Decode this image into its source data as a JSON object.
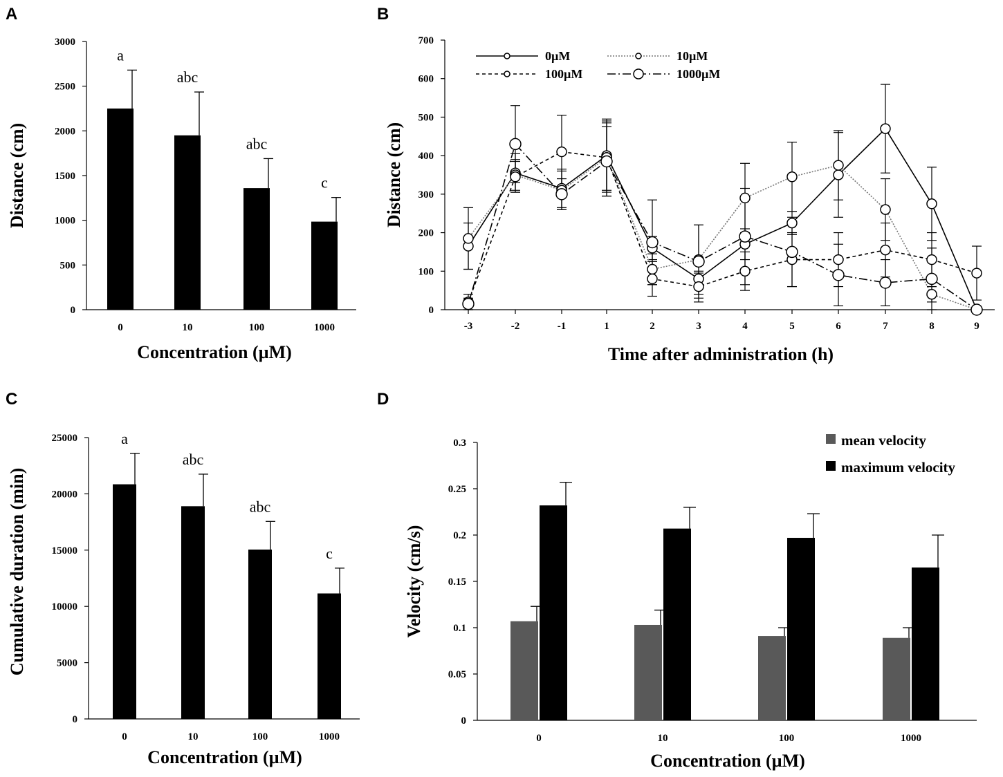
{
  "panels": {
    "A": "A",
    "B": "B",
    "C": "C",
    "D": "D"
  },
  "chart_data": [
    {
      "panel": "A",
      "type": "bar",
      "categories": [
        "0",
        "10",
        "100",
        "1000"
      ],
      "values": [
        2250,
        1950,
        1360,
        985
      ],
      "errors": [
        430,
        485,
        330,
        270
      ],
      "sig_labels": [
        "a",
        "abc",
        "abc",
        "c"
      ],
      "xlabel": "Concentration (µM)",
      "ylabel": "Distance (cm)",
      "ylim": [
        0,
        3000
      ],
      "yticks": [
        "0",
        "500",
        "1000",
        "1500",
        "2000",
        "2500",
        "3000"
      ],
      "color": "#000000"
    },
    {
      "panel": "B",
      "type": "line",
      "x": [
        "-3",
        "-2",
        "-1",
        "1",
        "2",
        "3",
        "4",
        "5",
        "6",
        "7",
        "8",
        "9"
      ],
      "series": [
        {
          "name": "0µM",
          "style": "solid",
          "marker_size": "small",
          "values": [
            165,
            355,
            315,
            400,
            160,
            80,
            170,
            225,
            350,
            470,
            275,
            0
          ],
          "errors": [
            60,
            50,
            50,
            90,
            30,
            15,
            40,
            30,
            110,
            115,
            95,
            0
          ]
        },
        {
          "name": "10µM",
          "style": "dotted",
          "marker_size": "small",
          "values": [
            185,
            350,
            310,
            395,
            105,
            130,
            290,
            345,
            375,
            260,
            40,
            0
          ],
          "errors": [
            80,
            40,
            50,
            90,
            40,
            90,
            90,
            90,
            90,
            80,
            20,
            0
          ]
        },
        {
          "name": "100µM",
          "style": "dashed",
          "marker_size": "small",
          "values": [
            20,
            345,
            410,
            395,
            80,
            60,
            100,
            130,
            130,
            155,
            130,
            95
          ],
          "errors": [
            20,
            40,
            95,
            100,
            45,
            40,
            50,
            70,
            70,
            70,
            70,
            70
          ]
        },
        {
          "name": "1000µM",
          "style": "dashdot",
          "marker_size": "large",
          "values": [
            15,
            430,
            300,
            385,
            175,
            125,
            190,
            150,
            90,
            70,
            80,
            0
          ],
          "errors": [
            15,
            100,
            40,
            90,
            110,
            95,
            125,
            90,
            80,
            60,
            80,
            0
          ]
        }
      ],
      "xlabel": "Time after administration (h)",
      "ylabel": "Distance (cm)",
      "ylim": [
        0,
        700
      ],
      "yticks": [
        "0",
        "100",
        "200",
        "300",
        "400",
        "500",
        "600",
        "700"
      ],
      "legend": "top-left"
    },
    {
      "panel": "C",
      "type": "bar",
      "categories": [
        "0",
        "10",
        "100",
        "1000"
      ],
      "values": [
        20850,
        18900,
        15050,
        11150
      ],
      "errors": [
        2750,
        2850,
        2500,
        2250
      ],
      "sig_labels": [
        "a",
        "abc",
        "abc",
        "c"
      ],
      "xlabel": "Concentration (µM)",
      "ylabel": "Cumulative duration (min)",
      "ylim": [
        0,
        25000
      ],
      "yticks": [
        "0",
        "5000",
        "10000",
        "15000",
        "20000",
        "25000"
      ],
      "color": "#000000"
    },
    {
      "panel": "D",
      "type": "bar",
      "categories": [
        "0",
        "10",
        "100",
        "1000"
      ],
      "series": [
        {
          "name": "mean velocity",
          "color": "#595959",
          "values": [
            0.107,
            0.103,
            0.091,
            0.089
          ],
          "errors": [
            0.016,
            0.016,
            0.009,
            0.011
          ]
        },
        {
          "name": "maximum velocity",
          "color": "#000000",
          "values": [
            0.232,
            0.207,
            0.197,
            0.165
          ],
          "errors": [
            0.025,
            0.023,
            0.026,
            0.035
          ]
        }
      ],
      "xlabel": "Concentration (µM)",
      "ylabel": "Velocity (cm/s)",
      "ylim": [
        0,
        0.3
      ],
      "yticks": [
        "0",
        "0.05",
        "0.1",
        "0.15",
        "0.2",
        "0.25",
        "0.3"
      ],
      "legend": "top-right"
    }
  ]
}
